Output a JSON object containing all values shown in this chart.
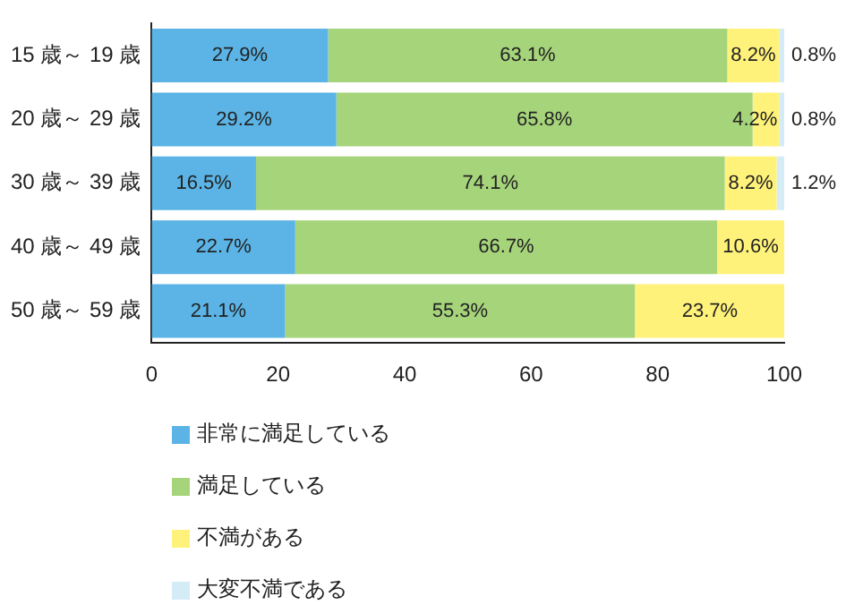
{
  "chart_data": {
    "type": "bar",
    "orientation": "horizontal",
    "stacked": true,
    "categories": [
      "15 歳～ 19 歳",
      "20 歳～ 29 歳",
      "30 歳～ 39 歳",
      "40 歳～ 49 歳",
      "50 歳～ 59 歳"
    ],
    "series": [
      {
        "name": "非常に満足している",
        "color": "#5bb4e5",
        "values": [
          27.9,
          29.2,
          16.5,
          22.7,
          21.1
        ],
        "value_labels": [
          "27.9%",
          "29.2%",
          "16.5%",
          "22.7%",
          "21.1%"
        ]
      },
      {
        "name": "満足している",
        "color": "#a6d47b",
        "values": [
          63.1,
          65.8,
          74.1,
          66.7,
          55.3
        ],
        "value_labels": [
          "63.1%",
          "65.8%",
          "74.1%",
          "66.7%",
          "55.3%"
        ]
      },
      {
        "name": "不満がある",
        "color": "#fff27a",
        "values": [
          8.2,
          4.2,
          8.2,
          10.6,
          23.7
        ],
        "value_labels": [
          "8.2%",
          "4.2%",
          "8.2%",
          "10.6%",
          "23.7%"
        ]
      },
      {
        "name": "大変不満である",
        "color": "#d4ecf6",
        "values": [
          0.8,
          0.8,
          1.2,
          null,
          null
        ],
        "value_labels": [
          "0.8%",
          "0.8%",
          "1.2%",
          null,
          null
        ]
      }
    ],
    "xlim": [
      0,
      100
    ],
    "xticks": [
      0,
      20,
      40,
      60,
      80,
      100
    ],
    "grid": false,
    "legend": "bottom"
  }
}
